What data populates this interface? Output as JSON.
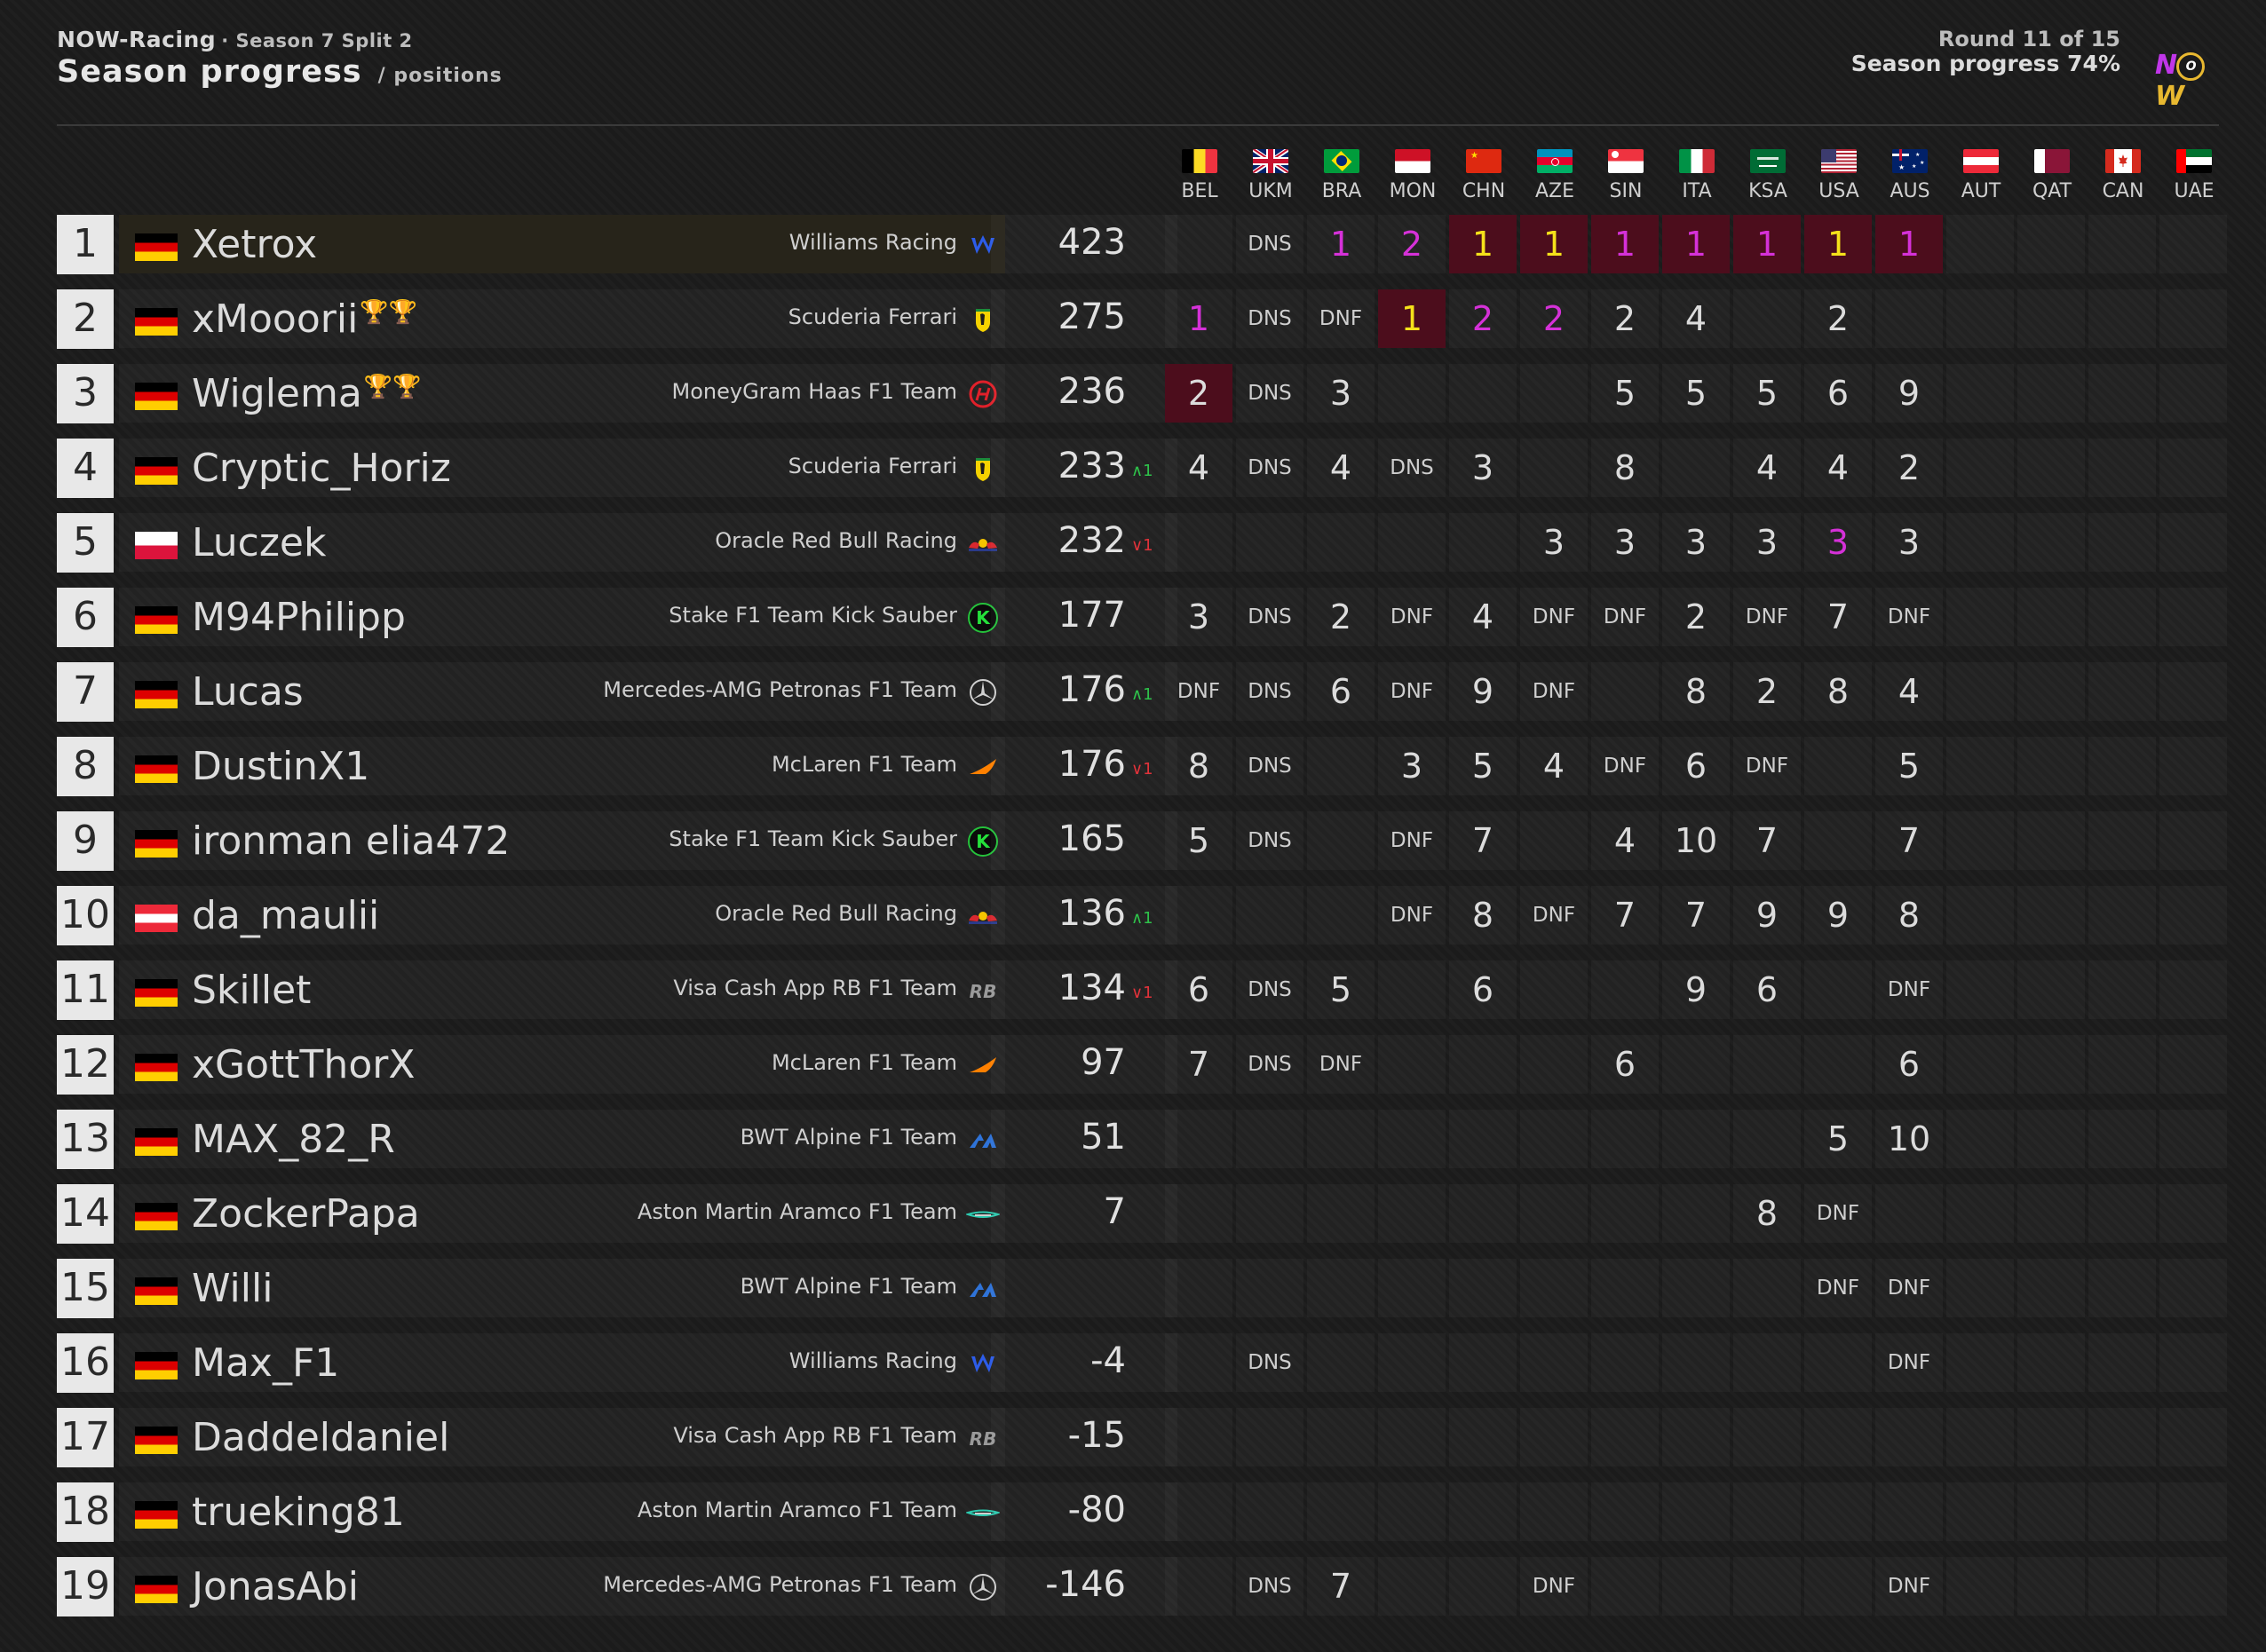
{
  "header": {
    "league": "NOW-Racing",
    "season": "· Season 7 Split 2",
    "title": "Season progress",
    "subtitle": "/ positions",
    "round": "Round 11 of 15",
    "progress": "Season progress 74%",
    "logo_text": "NOW"
  },
  "races": [
    {
      "code": "BEL",
      "flag": "belgium"
    },
    {
      "code": "UKM",
      "flag": "uk"
    },
    {
      "code": "BRA",
      "flag": "brazil"
    },
    {
      "code": "MON",
      "flag": "monaco"
    },
    {
      "code": "CHN",
      "flag": "china"
    },
    {
      "code": "AZE",
      "flag": "azerbaijan"
    },
    {
      "code": "SIN",
      "flag": "singapore"
    },
    {
      "code": "ITA",
      "flag": "italy"
    },
    {
      "code": "KSA",
      "flag": "saudi-arabia"
    },
    {
      "code": "USA",
      "flag": "usa"
    },
    {
      "code": "AUS",
      "flag": "australia"
    },
    {
      "code": "AUT",
      "flag": "austria"
    },
    {
      "code": "QAT",
      "flag": "qatar"
    },
    {
      "code": "CAN",
      "flag": "canada"
    },
    {
      "code": "UAE",
      "flag": "uae"
    }
  ],
  "colors": {
    "win_highlight": "#4c0d1c",
    "gold": "#f5e21a",
    "fastest_lap_pink": "#d531d8",
    "delta_up": "#2ec24a",
    "delta_down": "#e0323a"
  },
  "standings": [
    {
      "pos": "1",
      "flag": "germany",
      "name": "Xetrox",
      "trophies": "",
      "team": "Williams Racing",
      "team_icon": "williams-icon",
      "points": "423",
      "delta": "",
      "delta_dir": "",
      "results": [
        {
          "v": ""
        },
        {
          "v": "DNS"
        },
        {
          "v": "1",
          "c": "pink"
        },
        {
          "v": "2",
          "c": "pink"
        },
        {
          "v": "1",
          "c": "gold",
          "hl": true
        },
        {
          "v": "1",
          "c": "gold",
          "hl": true
        },
        {
          "v": "1",
          "c": "pink",
          "hl": true
        },
        {
          "v": "1",
          "c": "pink",
          "hl": true
        },
        {
          "v": "1",
          "c": "pink",
          "hl": true
        },
        {
          "v": "1",
          "c": "gold",
          "hl": true
        },
        {
          "v": "1",
          "c": "pink",
          "hl": true
        },
        {
          "v": ""
        },
        {
          "v": ""
        },
        {
          "v": ""
        },
        {
          "v": ""
        }
      ]
    },
    {
      "pos": "2",
      "flag": "germany",
      "name": "xMooorii",
      "trophies": "🏆🏆",
      "team": "Scuderia Ferrari",
      "team_icon": "ferrari-icon",
      "points": "275",
      "delta": "",
      "delta_dir": "",
      "results": [
        {
          "v": "1",
          "c": "pink"
        },
        {
          "v": "DNS"
        },
        {
          "v": "DNF"
        },
        {
          "v": "1",
          "c": "gold",
          "hl": true
        },
        {
          "v": "2",
          "c": "pink"
        },
        {
          "v": "2",
          "c": "pink"
        },
        {
          "v": "2"
        },
        {
          "v": "4"
        },
        {
          "v": ""
        },
        {
          "v": "2"
        },
        {
          "v": ""
        },
        {
          "v": ""
        },
        {
          "v": ""
        },
        {
          "v": ""
        },
        {
          "v": ""
        }
      ]
    },
    {
      "pos": "3",
      "flag": "germany",
      "name": "Wiglema",
      "trophies": "🏆🏆",
      "team": "MoneyGram Haas F1 Team",
      "team_icon": "haas-icon",
      "points": "236",
      "delta": "",
      "delta_dir": "",
      "results": [
        {
          "v": "2",
          "hl": true
        },
        {
          "v": "DNS"
        },
        {
          "v": "3"
        },
        {
          "v": ""
        },
        {
          "v": ""
        },
        {
          "v": ""
        },
        {
          "v": "5"
        },
        {
          "v": "5"
        },
        {
          "v": "5"
        },
        {
          "v": "6"
        },
        {
          "v": "9"
        },
        {
          "v": ""
        },
        {
          "v": ""
        },
        {
          "v": ""
        },
        {
          "v": ""
        }
      ]
    },
    {
      "pos": "4",
      "flag": "germany",
      "name": "Cryptic_Horiz",
      "trophies": "",
      "team": "Scuderia Ferrari",
      "team_icon": "ferrari-icon",
      "points": "233",
      "delta": "^1",
      "delta_dir": "up",
      "results": [
        {
          "v": "4"
        },
        {
          "v": "DNS"
        },
        {
          "v": "4"
        },
        {
          "v": "DNS"
        },
        {
          "v": "3"
        },
        {
          "v": ""
        },
        {
          "v": "8"
        },
        {
          "v": ""
        },
        {
          "v": "4"
        },
        {
          "v": "4"
        },
        {
          "v": "2"
        },
        {
          "v": ""
        },
        {
          "v": ""
        },
        {
          "v": ""
        },
        {
          "v": ""
        }
      ]
    },
    {
      "pos": "5",
      "flag": "poland",
      "name": "Luczek",
      "trophies": "",
      "team": "Oracle Red Bull Racing",
      "team_icon": "red-bull-icon",
      "points": "232",
      "delta": "v1",
      "delta_dir": "down",
      "results": [
        {
          "v": ""
        },
        {
          "v": ""
        },
        {
          "v": ""
        },
        {
          "v": ""
        },
        {
          "v": ""
        },
        {
          "v": "3"
        },
        {
          "v": "3"
        },
        {
          "v": "3"
        },
        {
          "v": "3"
        },
        {
          "v": "3",
          "c": "pink"
        },
        {
          "v": "3"
        },
        {
          "v": ""
        },
        {
          "v": ""
        },
        {
          "v": ""
        },
        {
          "v": ""
        }
      ]
    },
    {
      "pos": "6",
      "flag": "germany",
      "name": "M94Philipp",
      "trophies": "",
      "team": "Stake F1 Team Kick Sauber",
      "team_icon": "kick-sauber-icon",
      "points": "177",
      "delta": "",
      "delta_dir": "",
      "results": [
        {
          "v": "3"
        },
        {
          "v": "DNS"
        },
        {
          "v": "2"
        },
        {
          "v": "DNF"
        },
        {
          "v": "4"
        },
        {
          "v": "DNF"
        },
        {
          "v": "DNF"
        },
        {
          "v": "2"
        },
        {
          "v": "DNF"
        },
        {
          "v": "7"
        },
        {
          "v": "DNF"
        },
        {
          "v": ""
        },
        {
          "v": ""
        },
        {
          "v": ""
        },
        {
          "v": ""
        }
      ]
    },
    {
      "pos": "7",
      "flag": "germany",
      "name": "Lucas",
      "trophies": "",
      "team": "Mercedes-AMG Petronas F1 Team",
      "team_icon": "mercedes-icon",
      "points": "176",
      "delta": "^1",
      "delta_dir": "up",
      "results": [
        {
          "v": "DNF"
        },
        {
          "v": "DNS"
        },
        {
          "v": "6"
        },
        {
          "v": "DNF"
        },
        {
          "v": "9"
        },
        {
          "v": "DNF"
        },
        {
          "v": ""
        },
        {
          "v": "8"
        },
        {
          "v": "2"
        },
        {
          "v": "8"
        },
        {
          "v": "4"
        },
        {
          "v": ""
        },
        {
          "v": ""
        },
        {
          "v": ""
        },
        {
          "v": ""
        }
      ]
    },
    {
      "pos": "8",
      "flag": "germany",
      "name": "DustinX1",
      "trophies": "",
      "team": "McLaren F1 Team",
      "team_icon": "mclaren-icon",
      "points": "176",
      "delta": "v1",
      "delta_dir": "down",
      "results": [
        {
          "v": "8"
        },
        {
          "v": "DNS"
        },
        {
          "v": ""
        },
        {
          "v": "3"
        },
        {
          "v": "5"
        },
        {
          "v": "4"
        },
        {
          "v": "DNF"
        },
        {
          "v": "6"
        },
        {
          "v": "DNF"
        },
        {
          "v": ""
        },
        {
          "v": "5"
        },
        {
          "v": ""
        },
        {
          "v": ""
        },
        {
          "v": ""
        },
        {
          "v": ""
        }
      ]
    },
    {
      "pos": "9",
      "flag": "germany",
      "name": "ironman elia472",
      "trophies": "",
      "team": "Stake F1 Team Kick Sauber",
      "team_icon": "kick-sauber-icon",
      "points": "165",
      "delta": "",
      "delta_dir": "",
      "results": [
        {
          "v": "5"
        },
        {
          "v": "DNS"
        },
        {
          "v": ""
        },
        {
          "v": "DNF"
        },
        {
          "v": "7"
        },
        {
          "v": ""
        },
        {
          "v": "4"
        },
        {
          "v": "10"
        },
        {
          "v": "7"
        },
        {
          "v": ""
        },
        {
          "v": "7"
        },
        {
          "v": ""
        },
        {
          "v": ""
        },
        {
          "v": ""
        },
        {
          "v": ""
        }
      ]
    },
    {
      "pos": "10",
      "flag": "austria",
      "name": "da_maulii",
      "trophies": "",
      "team": "Oracle Red Bull Racing",
      "team_icon": "red-bull-icon",
      "points": "136",
      "delta": "^1",
      "delta_dir": "up",
      "results": [
        {
          "v": ""
        },
        {
          "v": ""
        },
        {
          "v": ""
        },
        {
          "v": "DNF"
        },
        {
          "v": "8"
        },
        {
          "v": "DNF"
        },
        {
          "v": "7"
        },
        {
          "v": "7"
        },
        {
          "v": "9"
        },
        {
          "v": "9"
        },
        {
          "v": "8"
        },
        {
          "v": ""
        },
        {
          "v": ""
        },
        {
          "v": ""
        },
        {
          "v": ""
        }
      ]
    },
    {
      "pos": "11",
      "flag": "germany",
      "name": "Skillet",
      "trophies": "",
      "team": "Visa Cash App RB F1 Team",
      "team_icon": "rb-icon",
      "points": "134",
      "delta": "v1",
      "delta_dir": "down",
      "results": [
        {
          "v": "6"
        },
        {
          "v": "DNS"
        },
        {
          "v": "5"
        },
        {
          "v": ""
        },
        {
          "v": "6"
        },
        {
          "v": ""
        },
        {
          "v": ""
        },
        {
          "v": "9"
        },
        {
          "v": "6"
        },
        {
          "v": ""
        },
        {
          "v": "DNF"
        },
        {
          "v": ""
        },
        {
          "v": ""
        },
        {
          "v": ""
        },
        {
          "v": ""
        }
      ]
    },
    {
      "pos": "12",
      "flag": "germany",
      "name": "xGottThorX",
      "trophies": "",
      "team": "McLaren F1 Team",
      "team_icon": "mclaren-icon",
      "points": "97",
      "delta": "",
      "delta_dir": "",
      "results": [
        {
          "v": "7"
        },
        {
          "v": "DNS"
        },
        {
          "v": "DNF"
        },
        {
          "v": ""
        },
        {
          "v": ""
        },
        {
          "v": ""
        },
        {
          "v": "6"
        },
        {
          "v": ""
        },
        {
          "v": ""
        },
        {
          "v": ""
        },
        {
          "v": "6"
        },
        {
          "v": ""
        },
        {
          "v": ""
        },
        {
          "v": ""
        },
        {
          "v": ""
        }
      ]
    },
    {
      "pos": "13",
      "flag": "germany",
      "name": "MAX_82_R",
      "trophies": "",
      "team": "BWT Alpine F1 Team",
      "team_icon": "alpine-icon",
      "points": "51",
      "delta": "",
      "delta_dir": "",
      "results": [
        {
          "v": ""
        },
        {
          "v": ""
        },
        {
          "v": ""
        },
        {
          "v": ""
        },
        {
          "v": ""
        },
        {
          "v": ""
        },
        {
          "v": ""
        },
        {
          "v": ""
        },
        {
          "v": ""
        },
        {
          "v": "5"
        },
        {
          "v": "10"
        },
        {
          "v": ""
        },
        {
          "v": ""
        },
        {
          "v": ""
        },
        {
          "v": ""
        }
      ]
    },
    {
      "pos": "14",
      "flag": "germany",
      "name": "ZockerPapa",
      "trophies": "",
      "team": "Aston Martin Aramco F1 Team",
      "team_icon": "aston-martin-icon",
      "points": "7",
      "delta": "",
      "delta_dir": "",
      "results": [
        {
          "v": ""
        },
        {
          "v": ""
        },
        {
          "v": ""
        },
        {
          "v": ""
        },
        {
          "v": ""
        },
        {
          "v": ""
        },
        {
          "v": ""
        },
        {
          "v": ""
        },
        {
          "v": "8"
        },
        {
          "v": "DNF"
        },
        {
          "v": ""
        },
        {
          "v": ""
        },
        {
          "v": ""
        },
        {
          "v": ""
        },
        {
          "v": ""
        }
      ]
    },
    {
      "pos": "15",
      "flag": "germany",
      "name": "Willi",
      "trophies": "",
      "team": "BWT Alpine F1 Team",
      "team_icon": "alpine-icon",
      "points": "",
      "delta": "",
      "delta_dir": "",
      "results": [
        {
          "v": ""
        },
        {
          "v": ""
        },
        {
          "v": ""
        },
        {
          "v": ""
        },
        {
          "v": ""
        },
        {
          "v": ""
        },
        {
          "v": ""
        },
        {
          "v": ""
        },
        {
          "v": ""
        },
        {
          "v": "DNF"
        },
        {
          "v": "DNF"
        },
        {
          "v": ""
        },
        {
          "v": ""
        },
        {
          "v": ""
        },
        {
          "v": ""
        }
      ]
    },
    {
      "pos": "16",
      "flag": "germany",
      "name": "Max_F1",
      "trophies": "",
      "team": "Williams Racing",
      "team_icon": "williams-icon",
      "points": "-4",
      "delta": "",
      "delta_dir": "",
      "results": [
        {
          "v": ""
        },
        {
          "v": "DNS"
        },
        {
          "v": ""
        },
        {
          "v": ""
        },
        {
          "v": ""
        },
        {
          "v": ""
        },
        {
          "v": ""
        },
        {
          "v": ""
        },
        {
          "v": ""
        },
        {
          "v": ""
        },
        {
          "v": "DNF"
        },
        {
          "v": ""
        },
        {
          "v": ""
        },
        {
          "v": ""
        },
        {
          "v": ""
        }
      ]
    },
    {
      "pos": "17",
      "flag": "germany",
      "name": "Daddeldaniel",
      "trophies": "",
      "team": "Visa Cash App RB F1 Team",
      "team_icon": "rb-icon",
      "points": "-15",
      "delta": "",
      "delta_dir": "",
      "results": [
        {
          "v": ""
        },
        {
          "v": ""
        },
        {
          "v": ""
        },
        {
          "v": ""
        },
        {
          "v": ""
        },
        {
          "v": ""
        },
        {
          "v": ""
        },
        {
          "v": ""
        },
        {
          "v": ""
        },
        {
          "v": ""
        },
        {
          "v": ""
        },
        {
          "v": ""
        },
        {
          "v": ""
        },
        {
          "v": ""
        },
        {
          "v": ""
        }
      ]
    },
    {
      "pos": "18",
      "flag": "germany",
      "name": "trueking81",
      "trophies": "",
      "team": "Aston Martin Aramco F1 Team",
      "team_icon": "aston-martin-icon",
      "points": "-80",
      "delta": "",
      "delta_dir": "",
      "results": [
        {
          "v": ""
        },
        {
          "v": ""
        },
        {
          "v": ""
        },
        {
          "v": ""
        },
        {
          "v": ""
        },
        {
          "v": ""
        },
        {
          "v": ""
        },
        {
          "v": ""
        },
        {
          "v": ""
        },
        {
          "v": ""
        },
        {
          "v": ""
        },
        {
          "v": ""
        },
        {
          "v": ""
        },
        {
          "v": ""
        },
        {
          "v": ""
        }
      ]
    },
    {
      "pos": "19",
      "flag": "germany",
      "name": "JonasAbi",
      "trophies": "",
      "team": "Mercedes-AMG Petronas F1 Team",
      "team_icon": "mercedes-icon",
      "points": "-146",
      "delta": "",
      "delta_dir": "",
      "results": [
        {
          "v": ""
        },
        {
          "v": "DNS"
        },
        {
          "v": "7"
        },
        {
          "v": ""
        },
        {
          "v": ""
        },
        {
          "v": "DNF"
        },
        {
          "v": ""
        },
        {
          "v": ""
        },
        {
          "v": ""
        },
        {
          "v": ""
        },
        {
          "v": "DNF"
        },
        {
          "v": ""
        },
        {
          "v": ""
        },
        {
          "v": ""
        },
        {
          "v": ""
        }
      ]
    }
  ]
}
